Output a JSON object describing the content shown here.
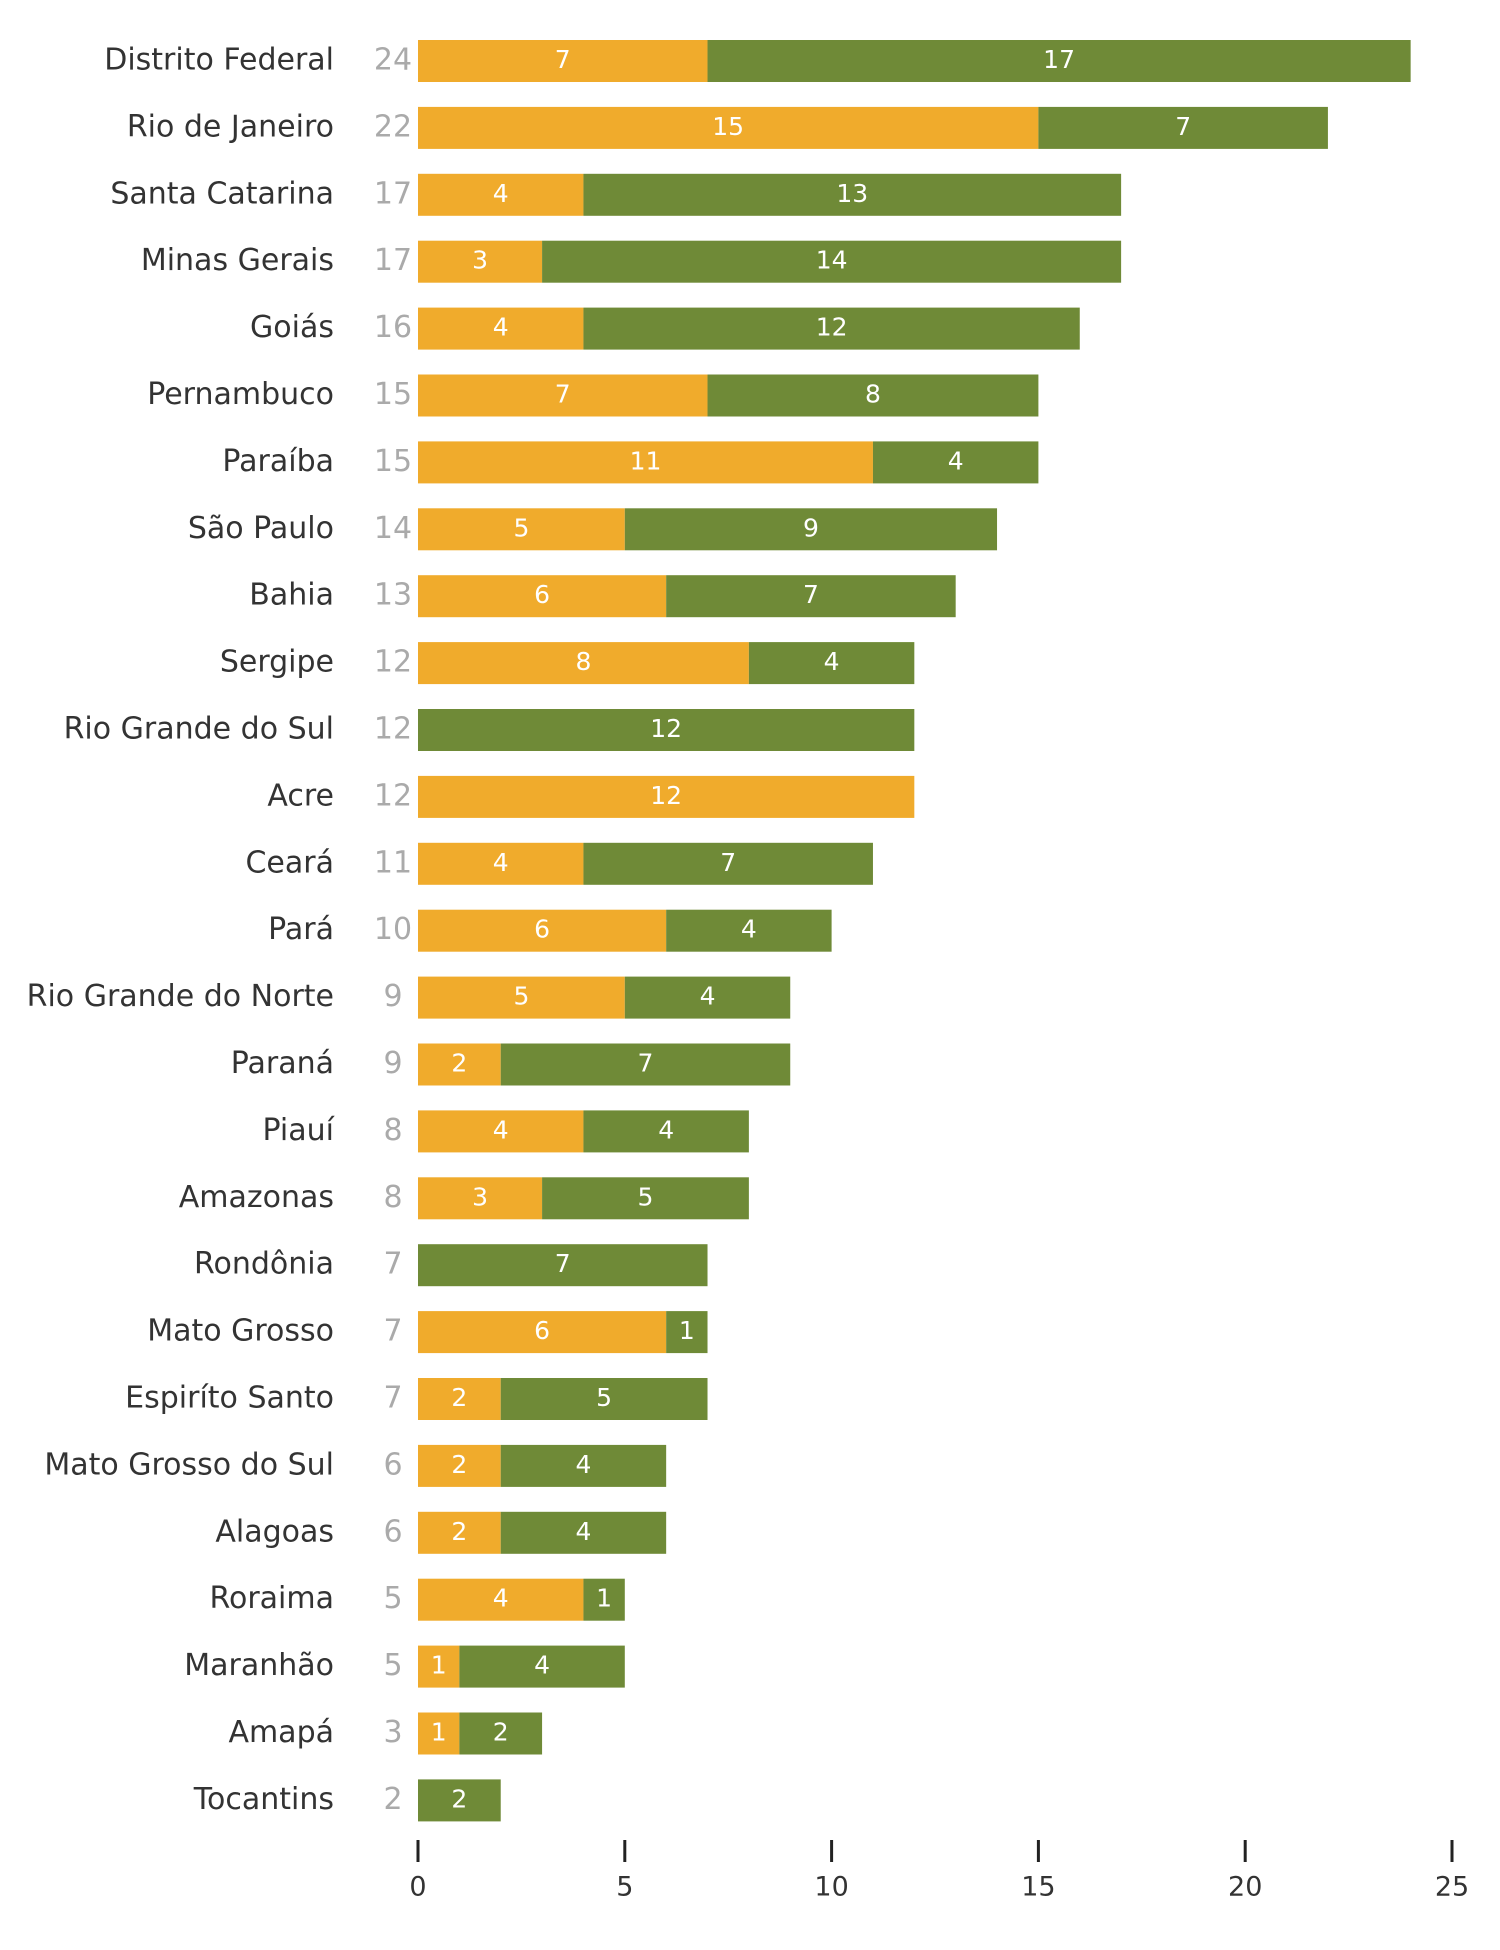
{
  "chart_data": {
    "type": "stacked-bar-horizontal",
    "categories": [
      "Distrito Federal",
      "Rio de Janeiro",
      "Santa Catarina",
      "Minas Gerais",
      "Goiás",
      "Pernambuco",
      "Paraíba",
      "São Paulo",
      "Bahia",
      "Sergipe",
      "Rio Grande do Sul",
      "Acre",
      "Ceará",
      "Pará",
      "Rio Grande do Norte",
      "Paraná",
      "Piauí",
      "Amazonas",
      "Rondônia",
      "Mato Grosso",
      "Espiríto Santo",
      "Mato Grosso do Sul",
      "Alagoas",
      "Roraima",
      "Maranhão",
      "Amapá",
      "Tocantins"
    ],
    "totals": [
      24,
      22,
      17,
      17,
      16,
      15,
      15,
      14,
      13,
      12,
      12,
      12,
      11,
      10,
      9,
      9,
      8,
      8,
      7,
      7,
      7,
      6,
      6,
      5,
      5,
      3,
      2
    ],
    "series": [
      {
        "color": "#f0ab2c",
        "values": [
          7,
          15,
          4,
          3,
          4,
          7,
          11,
          5,
          6,
          8,
          0,
          12,
          4,
          6,
          5,
          2,
          4,
          3,
          0,
          6,
          2,
          2,
          2,
          4,
          1,
          1,
          0
        ]
      },
      {
        "color": "#6f8a37",
        "values": [
          17,
          7,
          13,
          14,
          12,
          8,
          4,
          9,
          7,
          4,
          12,
          0,
          7,
          4,
          4,
          7,
          4,
          5,
          7,
          1,
          5,
          4,
          4,
          1,
          4,
          2,
          2
        ]
      }
    ],
    "xlim": [
      0,
      25
    ],
    "xticks": [
      0,
      5,
      10,
      15,
      20,
      25
    ]
  }
}
